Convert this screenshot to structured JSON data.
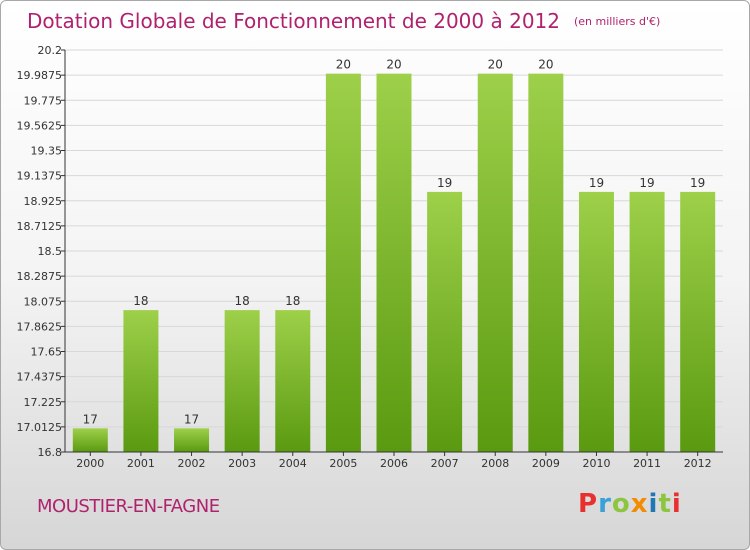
{
  "title": "Dotation Globale de Fonctionnement de 2000 à 2012",
  "subtitle": "(en milliers d'€)",
  "commune": "MOUSTIER-EN-FAGNE",
  "logo": {
    "text": "Proxiti",
    "colors": [
      "#e8312f",
      "#3aa0d8",
      "#8cc63f",
      "#f28c00",
      "#1f78b4",
      "#8cc63f",
      "#e8312f"
    ]
  },
  "colors": {
    "title": "#b0226e",
    "bar_light": "#9ed04a",
    "bar_dark": "#5a9a10",
    "grid": "#d8d8d8",
    "axis": "#333333"
  },
  "chart_data": {
    "type": "bar",
    "title": "Dotation Globale de Fonctionnement de 2000 à 2012",
    "subtitle": "(en milliers d'€)",
    "xlabel": "",
    "ylabel": "",
    "categories": [
      "2000",
      "2001",
      "2002",
      "2003",
      "2004",
      "2005",
      "2006",
      "2007",
      "2008",
      "2009",
      "2010",
      "2011",
      "2012"
    ],
    "values": [
      17,
      18,
      17,
      18,
      18,
      20,
      20,
      19,
      20,
      20,
      19,
      19,
      19
    ],
    "data_labels": [
      "17",
      "18",
      "17",
      "18",
      "18",
      "20",
      "20",
      "19",
      "20",
      "20",
      "19",
      "19",
      "19"
    ],
    "yticks": [
      16.8,
      17.0125,
      17.225,
      17.4375,
      17.65,
      17.8625,
      18.075,
      18.2875,
      18.5,
      18.7125,
      18.925,
      19.1375,
      19.35,
      19.5625,
      19.775,
      19.9875,
      20.2
    ],
    "ytick_labels": [
      "16.8",
      "17.0125",
      "17.225",
      "17.4375",
      "17.65",
      "17.8625",
      "18.075",
      "18.2875",
      "18.5",
      "18.7125",
      "18.925",
      "19.1375",
      "19.35",
      "19.5625",
      "19.775",
      "19.9875",
      "20.2"
    ],
    "ylim": [
      16.8,
      20.2
    ],
    "grid": true,
    "legend": "none"
  }
}
